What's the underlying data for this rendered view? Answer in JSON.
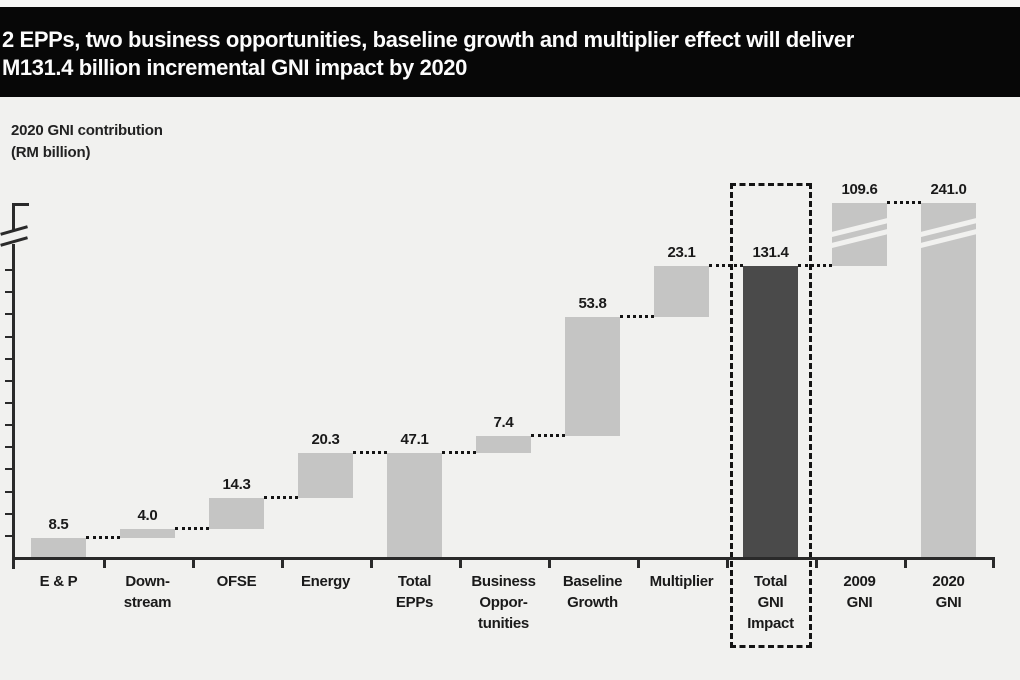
{
  "banner": {
    "line1": "2 EPPs, two business opportunities, baseline growth and multiplier effect will deliver",
    "line2": "M131.4 billion incremental GNI impact by 2020",
    "bg_color": "#070707",
    "text_color": "#fcfcfc"
  },
  "y_axis_label": {
    "line1": "2020 GNI contribution",
    "line2": "(RM billion)"
  },
  "chart_data": {
    "type": "bar",
    "subtype": "waterfall",
    "title": "2 EPPs, two business opportunities, baseline growth and multiplier effect will deliver RM131.4 billion incremental GNI impact by 2020",
    "ylabel": "2020 GNI contribution (RM billion)",
    "xlabel": "",
    "grid": false,
    "legend": false,
    "y_tick_interval": 10,
    "y_ticks_visible_range": [
      10,
      130
    ],
    "y_axis_break": true,
    "ylim_displayed": [
      0,
      160
    ],
    "categories": [
      "E & P",
      "Down-stream",
      "OFSE",
      "Energy",
      "Total EPPs",
      "Business Oppor-tunities",
      "Baseline Growth",
      "Multiplier",
      "Total GNI Impact",
      "2009 GNI",
      "2020 GNI"
    ],
    "bars": [
      {
        "label_lines": [
          "E & P"
        ],
        "value": 8.5,
        "value_label": "8.5",
        "start": 0,
        "end": 8.5,
        "dark": false,
        "truncated": false,
        "boxed": false
      },
      {
        "label_lines": [
          "Down-",
          "stream"
        ],
        "value": 4.0,
        "value_label": "4.0",
        "start": 8.5,
        "end": 12.5,
        "dark": false,
        "truncated": false,
        "boxed": false
      },
      {
        "label_lines": [
          "OFSE"
        ],
        "value": 14.3,
        "value_label": "14.3",
        "start": 12.5,
        "end": 26.8,
        "dark": false,
        "truncated": false,
        "boxed": false
      },
      {
        "label_lines": [
          "Energy"
        ],
        "value": 20.3,
        "value_label": "20.3",
        "start": 26.8,
        "end": 47.1,
        "dark": false,
        "truncated": false,
        "boxed": false
      },
      {
        "label_lines": [
          "Total",
          "EPPs"
        ],
        "value": 47.1,
        "value_label": "47.1",
        "start": 0,
        "end": 47.1,
        "dark": false,
        "truncated": false,
        "boxed": false
      },
      {
        "label_lines": [
          "Business",
          "Oppor-",
          "tunities"
        ],
        "value": 7.4,
        "value_label": "7.4",
        "start": 47.1,
        "end": 54.5,
        "dark": false,
        "truncated": false,
        "boxed": false
      },
      {
        "label_lines": [
          "Baseline",
          "Growth"
        ],
        "value": 53.8,
        "value_label": "53.8",
        "start": 54.5,
        "end": 108.3,
        "dark": false,
        "truncated": false,
        "boxed": false
      },
      {
        "label_lines": [
          "Multiplier"
        ],
        "value": 23.1,
        "value_label": "23.1",
        "start": 108.3,
        "end": 131.4,
        "dark": false,
        "truncated": false,
        "boxed": false
      },
      {
        "label_lines": [
          "Total",
          "GNI",
          "Impact"
        ],
        "value": 131.4,
        "value_label": "131.4",
        "start": 0,
        "end": 131.4,
        "dark": true,
        "truncated": false,
        "boxed": true
      },
      {
        "label_lines": [
          "2009",
          "GNI"
        ],
        "value": 109.6,
        "value_label": "109.6",
        "start": 131.4,
        "end": 241.0,
        "dark": false,
        "truncated": true,
        "boxed": false
      },
      {
        "label_lines": [
          "2020",
          "GNI"
        ],
        "value": 241.0,
        "value_label": "241.0",
        "start": 0,
        "end": 241.0,
        "dark": false,
        "truncated": true,
        "boxed": false
      }
    ],
    "connector_levels": [
      8.5,
      12.5,
      26.8,
      47.1,
      47.1,
      54.5,
      108.3,
      131.4,
      131.4,
      241.0
    ],
    "colors": {
      "bar_light": "#c5c5c4",
      "bar_dark": "#4a4a4a",
      "axis": "#2a2a2a",
      "dotted": "#141414",
      "background": "#f1f1ef",
      "highlight_box": "#141414",
      "label_text": "#1a1a1a"
    }
  }
}
